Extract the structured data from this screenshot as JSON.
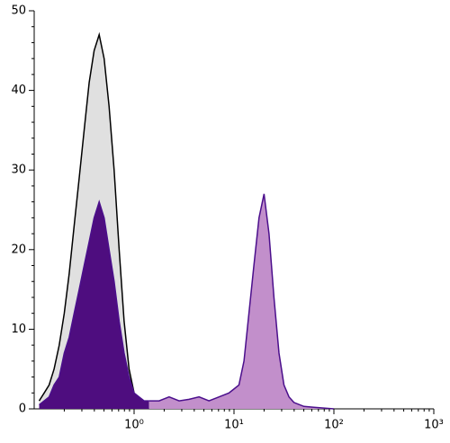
{
  "chart_data": {
    "type": "area",
    "xscale": "log",
    "xlim": [
      0.1,
      1000
    ],
    "ylim": [
      0,
      50
    ],
    "xticks": [
      {
        "value": 1,
        "label": "10⁰"
      },
      {
        "value": 10,
        "label": "10¹"
      },
      {
        "value": 100,
        "label": "10²"
      },
      {
        "value": 1000,
        "label": "10³"
      }
    ],
    "yticks": [
      0,
      10,
      20,
      30,
      40,
      50
    ],
    "series": [
      {
        "color": "#000000",
        "fill": "#e0e0e0",
        "x": [
          0.112,
          0.126,
          0.141,
          0.158,
          0.178,
          0.2,
          0.224,
          0.251,
          0.282,
          0.316,
          0.355,
          0.398,
          0.447,
          0.501,
          0.562,
          0.631,
          0.708,
          0.794,
          0.891,
          1,
          1.12,
          1.26,
          1.41
        ],
        "values": [
          1,
          2,
          3,
          5,
          8,
          12,
          17,
          23,
          29,
          35,
          41,
          45,
          47,
          44,
          38,
          30,
          20,
          11,
          5,
          2,
          1,
          0.5,
          0
        ]
      },
      {
        "color": "#4b0f8c",
        "fill": "#4e0d7f",
        "x": [
          0.112,
          0.126,
          0.141,
          0.158,
          0.178,
          0.2,
          0.224,
          0.251,
          0.282,
          0.316,
          0.355,
          0.398,
          0.447,
          0.501,
          0.562,
          0.631,
          0.708,
          0.794,
          0.891,
          1,
          1.12,
          1.26,
          1.41
        ],
        "values": [
          0.5,
          1,
          1.5,
          3,
          4,
          7,
          9,
          12,
          15,
          18,
          21,
          24,
          26,
          24,
          20,
          16,
          11,
          7,
          4,
          2,
          1.5,
          1,
          1
        ]
      },
      {
        "color": "#4b0f8c",
        "fill": "#c28fcb",
        "x": [
          1.41,
          1.78,
          2.24,
          2.82,
          3.55,
          4.47,
          5.62,
          7.08,
          8.91,
          10,
          11.2,
          12.6,
          14.1,
          15.8,
          17.8,
          20,
          22.4,
          25.1,
          28.2,
          31.6,
          35.5,
          39.8,
          50.1,
          63.1,
          100
        ],
        "values": [
          1,
          1,
          1.5,
          1,
          1.2,
          1.5,
          1,
          1.5,
          2,
          2.5,
          3,
          6,
          12,
          18,
          24,
          27,
          22,
          14,
          7,
          3,
          1.5,
          0.8,
          0.3,
          0.2,
          0
        ]
      }
    ]
  }
}
